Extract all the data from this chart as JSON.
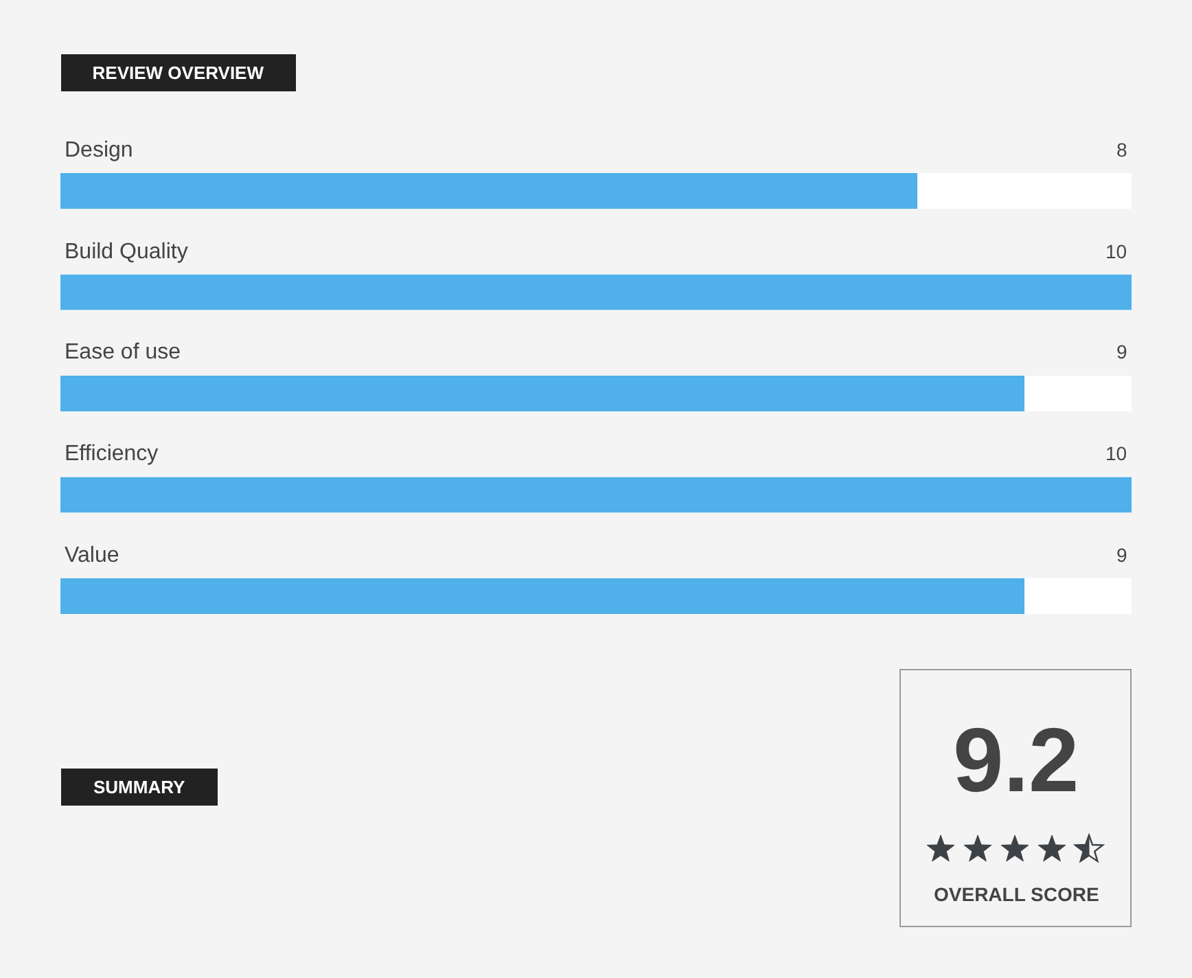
{
  "chart_data": {
    "type": "bar",
    "orientation": "horizontal",
    "title": "REVIEW OVERVIEW",
    "categories": [
      "Design",
      "Build Quality",
      "Ease of use",
      "Efficiency",
      "Value"
    ],
    "values": [
      8,
      10,
      9,
      10,
      9
    ],
    "color": "#4fb0ea",
    "xlim": [
      0,
      10
    ],
    "data_labels": true,
    "tick_labels": "y",
    "annotations": [
      "SUMMARY",
      "9.2",
      "OVERALL SCORE"
    ]
  }
}
